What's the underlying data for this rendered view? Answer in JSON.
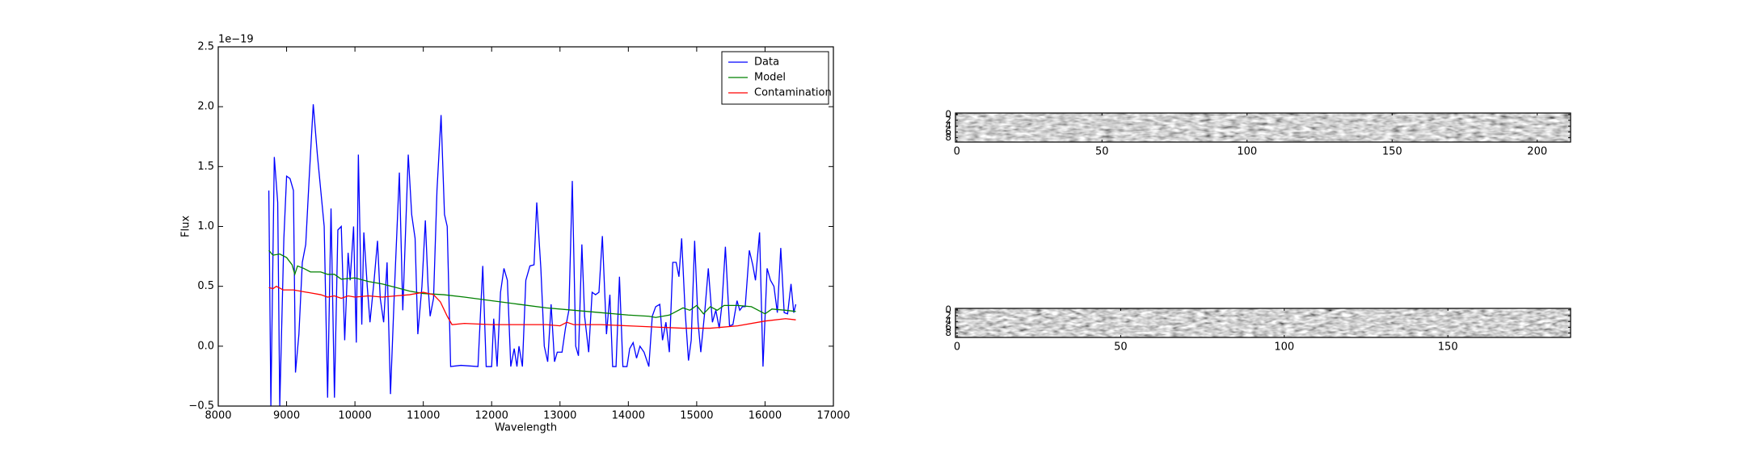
{
  "chart_data": [
    {
      "type": "line",
      "offset_label": "1e−19",
      "xlabel": "Wavelength",
      "ylabel": "Flux",
      "xlim": [
        8000,
        17000
      ],
      "xticks": [
        8000,
        9000,
        10000,
        11000,
        12000,
        13000,
        14000,
        15000,
        16000,
        17000
      ],
      "ylim": [
        -0.5,
        2.5
      ],
      "yticks": [
        {
          "value": -0.5,
          "label": "−0.5"
        },
        {
          "value": 0,
          "label": "0.0"
        },
        0.5,
        {
          "value": 1,
          "label": "1.0"
        },
        1.5,
        {
          "value": 2,
          "label": "2.0"
        },
        2.5
      ],
      "legend": "upper right",
      "series": [
        {
          "name": "Data",
          "color": "#0000ff",
          "x": [
            8740,
            8770,
            8820,
            8870,
            8900,
            8960,
            9000,
            9050,
            9100,
            9130,
            9180,
            9230,
            9280,
            9330,
            9390,
            9450,
            9500,
            9550,
            9600,
            9650,
            9700,
            9750,
            9800,
            9850,
            9900,
            9930,
            9980,
            10020,
            10050,
            10100,
            10130,
            10180,
            10220,
            10280,
            10330,
            10370,
            10420,
            10470,
            10520,
            10580,
            10650,
            10700,
            10780,
            10830,
            10880,
            10920,
            10980,
            11030,
            11070,
            11100,
            11150,
            11200,
            11260,
            11310,
            11350,
            11400,
            11550,
            11800,
            11870,
            11920,
            12000,
            12030,
            12080,
            12130,
            12180,
            12230,
            12280,
            12330,
            12370,
            12400,
            12450,
            12500,
            12560,
            12620,
            12660,
            12720,
            12770,
            12820,
            12870,
            12920,
            12960,
            13030,
            13080,
            13130,
            13180,
            13230,
            13270,
            13320,
            13360,
            13420,
            13470,
            13520,
            13570,
            13620,
            13680,
            13730,
            13770,
            13820,
            13870,
            13920,
            13980,
            14020,
            14070,
            14120,
            14170,
            14230,
            14300,
            14350,
            14400,
            14460,
            14500,
            14550,
            14600,
            14650,
            14700,
            14740,
            14780,
            14830,
            14880,
            14920,
            14970,
            15020,
            15060,
            15120,
            15170,
            15230,
            15280,
            15330,
            15370,
            15420,
            15480,
            15530,
            15590,
            15630,
            15670,
            15710,
            15770,
            15820,
            15860,
            15920,
            15970,
            16030,
            16080,
            16130,
            16180,
            16230,
            16280,
            16330,
            16380,
            16420,
            16450
          ],
          "values": [
            1.3,
            -0.5,
            1.58,
            1.2,
            -0.5,
            0.9,
            1.42,
            1.4,
            1.3,
            -0.22,
            0.1,
            0.7,
            0.85,
            1.4,
            2.02,
            1.6,
            1.3,
            1.0,
            -0.43,
            1.15,
            -0.43,
            0.97,
            1.0,
            0.05,
            0.78,
            0.55,
            1.0,
            0.03,
            1.6,
            0.18,
            0.95,
            0.5,
            0.2,
            0.55,
            0.88,
            0.4,
            0.2,
            0.7,
            -0.4,
            0.5,
            1.45,
            0.3,
            1.6,
            1.1,
            0.9,
            0.1,
            0.5,
            1.05,
            0.5,
            0.25,
            0.4,
            1.3,
            1.93,
            1.1,
            1.0,
            -0.17,
            -0.16,
            -0.17,
            0.67,
            -0.17,
            -0.17,
            0.23,
            -0.17,
            0.45,
            0.65,
            0.55,
            -0.17,
            -0.02,
            -0.17,
            0.0,
            -0.17,
            0.55,
            0.67,
            0.68,
            1.2,
            0.65,
            0.0,
            -0.13,
            0.35,
            -0.13,
            -0.05,
            -0.05,
            0.15,
            0.3,
            1.38,
            0.0,
            -0.08,
            0.85,
            0.25,
            -0.05,
            0.45,
            0.43,
            0.45,
            0.92,
            0.1,
            0.43,
            -0.17,
            -0.17,
            0.58,
            -0.17,
            -0.17,
            -0.02,
            0.03,
            -0.1,
            0.0,
            -0.05,
            -0.17,
            0.25,
            0.33,
            0.35,
            0.05,
            0.2,
            -0.05,
            0.7,
            0.7,
            0.58,
            0.9,
            0.3,
            -0.12,
            0.05,
            0.88,
            0.2,
            -0.05,
            0.3,
            0.65,
            0.2,
            0.3,
            0.15,
            0.35,
            0.83,
            0.17,
            0.18,
            0.38,
            0.3,
            0.33,
            0.33,
            0.8,
            0.68,
            0.55,
            0.95,
            -0.17,
            0.65,
            0.55,
            0.5,
            0.28,
            0.82,
            0.28,
            0.27,
            0.52,
            0.28,
            0.35
          ]
        },
        {
          "name": "Model",
          "color": "#008000",
          "x": [
            8740,
            8800,
            8900,
            9000,
            9080,
            9120,
            9160,
            9250,
            9350,
            9500,
            9600,
            9700,
            9800,
            10000,
            10200,
            10400,
            10600,
            10800,
            10900,
            11000,
            11300,
            11600,
            12000,
            12400,
            12800,
            13200,
            13600,
            14000,
            14300,
            14400,
            14600,
            14800,
            14900,
            15000,
            15100,
            15200,
            15300,
            15400,
            15600,
            15800,
            15900,
            16000,
            16100,
            16300,
            16450
          ],
          "values": [
            0.8,
            0.76,
            0.77,
            0.74,
            0.68,
            0.6,
            0.67,
            0.65,
            0.62,
            0.62,
            0.6,
            0.6,
            0.56,
            0.57,
            0.54,
            0.52,
            0.49,
            0.46,
            0.45,
            0.44,
            0.43,
            0.41,
            0.38,
            0.35,
            0.32,
            0.3,
            0.28,
            0.26,
            0.25,
            0.24,
            0.26,
            0.32,
            0.3,
            0.34,
            0.27,
            0.33,
            0.3,
            0.34,
            0.34,
            0.33,
            0.3,
            0.27,
            0.31,
            0.3,
            0.29
          ]
        },
        {
          "name": "Contamination",
          "color": "#ff0000",
          "x": [
            8740,
            8800,
            8850,
            8950,
            9100,
            9300,
            9500,
            9600,
            9700,
            9800,
            9900,
            10000,
            10200,
            10400,
            10600,
            10800,
            11000,
            11150,
            11250,
            11350,
            11420,
            11600,
            12000,
            12400,
            12800,
            13000,
            13100,
            13200,
            13600,
            14000,
            14400,
            14800,
            15200,
            15600,
            16000,
            16300,
            16450
          ],
          "values": [
            0.49,
            0.48,
            0.5,
            0.47,
            0.47,
            0.45,
            0.43,
            0.41,
            0.42,
            0.4,
            0.42,
            0.41,
            0.42,
            0.41,
            0.42,
            0.43,
            0.45,
            0.43,
            0.37,
            0.25,
            0.18,
            0.19,
            0.18,
            0.18,
            0.18,
            0.17,
            0.2,
            0.18,
            0.18,
            0.17,
            0.16,
            0.15,
            0.15,
            0.17,
            0.21,
            0.23,
            0.22
          ]
        }
      ]
    },
    {
      "type": "image",
      "cmap": "gray",
      "xlim": [
        -0.5,
        211.5
      ],
      "ylim": [
        9.5,
        -0.5
      ],
      "xticks": [
        0,
        50,
        100,
        150,
        200
      ],
      "yticks": [
        0,
        2,
        4,
        6,
        8
      ]
    },
    {
      "type": "image",
      "cmap": "gray",
      "xlim": [
        -0.5,
        187.5
      ],
      "ylim": [
        9.5,
        -0.5
      ],
      "xticks": [
        0,
        50,
        100,
        150
      ],
      "yticks": [
        0,
        2,
        4,
        6,
        8
      ]
    }
  ]
}
